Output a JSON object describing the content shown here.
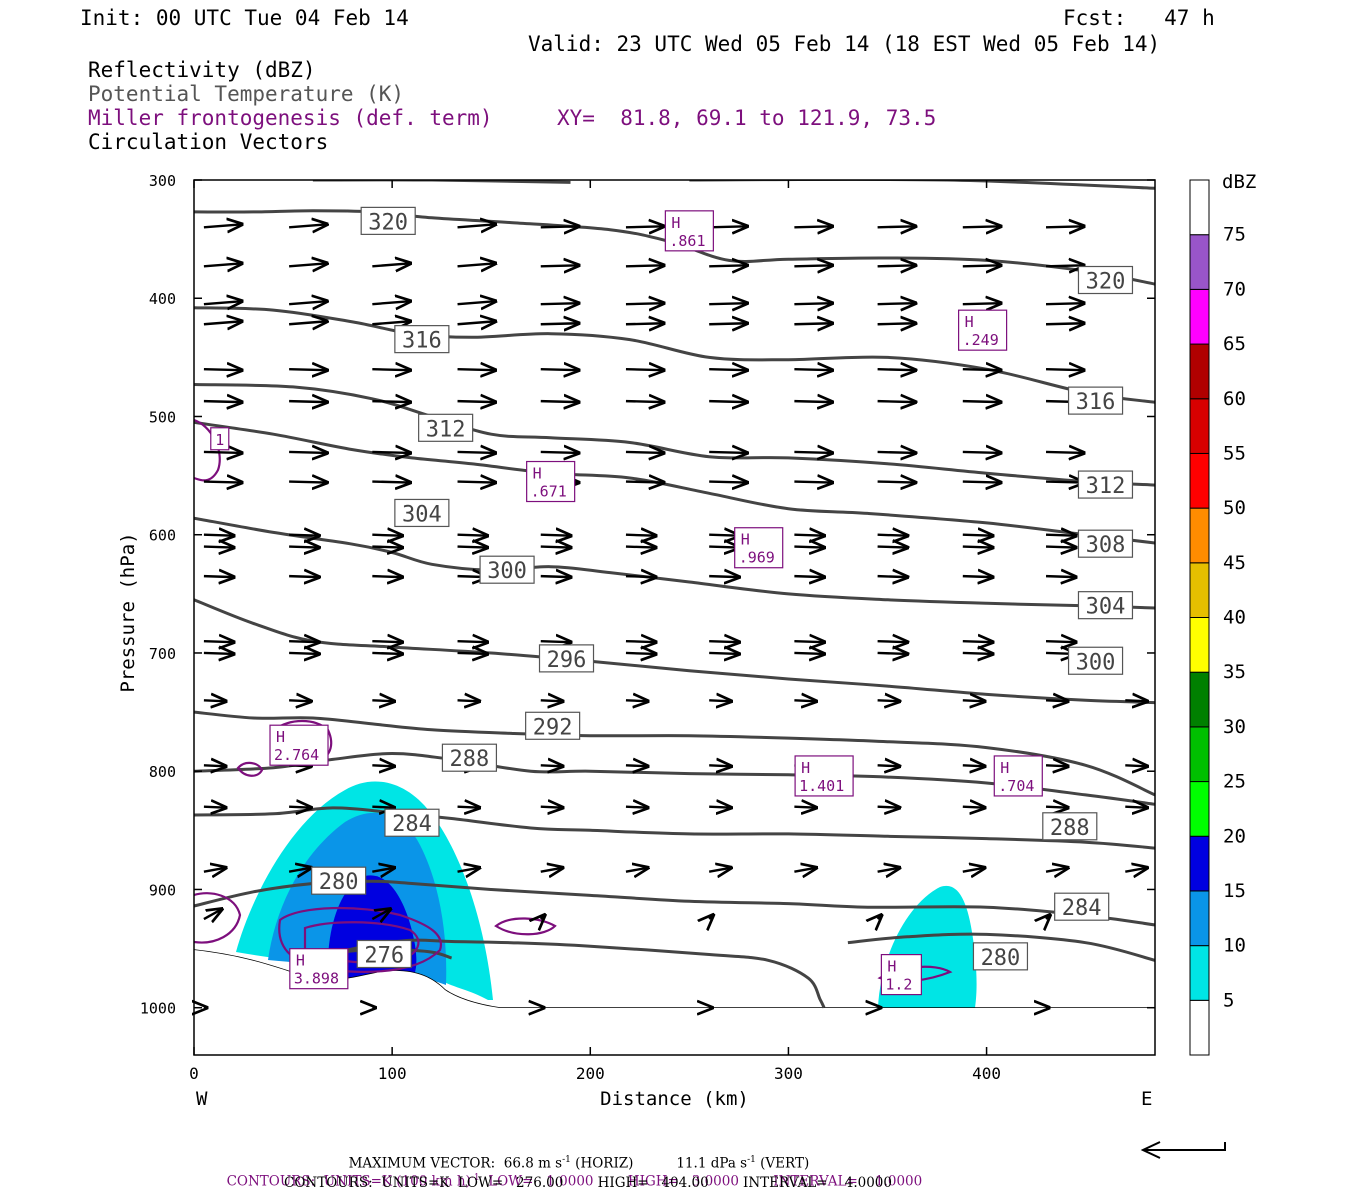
{
  "header": {
    "init": "Init: 00 UTC Tue 04 Feb 14",
    "fcst": "Fcst:   47 h",
    "valid": "Valid: 23 UTC Wed 05 Feb 14 (18 EST Wed 05 Feb 14)",
    "field1": "Reflectivity (dBZ)",
    "field2": "Potential Temperature (K)",
    "field3": "Miller frontogenesis (def. term)",
    "xy": "XY=  81.8, 69.1 to 121.9, 73.5",
    "field4": "Circulation Vectors"
  },
  "chart_data": {
    "type": "cross-section",
    "xlabel": "Distance (km)",
    "ylabel": "Pressure (hPa)",
    "xlim": [
      0,
      485
    ],
    "ylim": [
      1040,
      300
    ],
    "x_ticks": [
      0,
      100,
      200,
      300,
      400
    ],
    "y_ticks": [
      300,
      400,
      500,
      600,
      700,
      800,
      900,
      1000
    ],
    "left_label": "W",
    "right_label": "E",
    "colorbar": {
      "unit": "dBZ",
      "levels": [
        5,
        10,
        15,
        20,
        25,
        30,
        35,
        40,
        45,
        50,
        55,
        60,
        65,
        70,
        75
      ],
      "colors": [
        "#00e5e5",
        "#0a95e8",
        "#0000e0",
        "#00ff00",
        "#00c000",
        "#008000",
        "#ffff00",
        "#e5bf00",
        "#ff8c00",
        "#ff0000",
        "#d80000",
        "#b00000",
        "#ff00ff",
        "#9955c9",
        "#ffffff"
      ]
    },
    "theta_contours": [
      {
        "label": "320",
        "points": [
          [
            0,
            327
          ],
          [
            30,
            327
          ],
          [
            60,
            326
          ],
          [
            90,
            327
          ],
          [
            120,
            332
          ],
          [
            160,
            336
          ],
          [
            210,
            342
          ],
          [
            240,
            352
          ],
          [
            270,
            368
          ],
          [
            300,
            367
          ],
          [
            350,
            366
          ],
          [
            400,
            368
          ],
          [
            450,
            377
          ],
          [
            485,
            388
          ]
        ]
      },
      {
        "label": "316",
        "points": [
          [
            0,
            408
          ],
          [
            40,
            410
          ],
          [
            80,
            420
          ],
          [
            110,
            430
          ],
          [
            140,
            433
          ],
          [
            180,
            430
          ],
          [
            220,
            435
          ],
          [
            260,
            450
          ],
          [
            300,
            452
          ],
          [
            350,
            450
          ],
          [
            400,
            460
          ],
          [
            450,
            480
          ],
          [
            485,
            488
          ]
        ]
      },
      {
        "label": "312",
        "points": [
          [
            0,
            473
          ],
          [
            50,
            475
          ],
          [
            90,
            485
          ],
          [
            120,
            500
          ],
          [
            150,
            515
          ],
          [
            180,
            518
          ],
          [
            220,
            522
          ],
          [
            260,
            534
          ],
          [
            300,
            535
          ],
          [
            350,
            540
          ],
          [
            400,
            548
          ],
          [
            450,
            555
          ],
          [
            485,
            558
          ]
        ]
      },
      {
        "label": "308",
        "points": [
          [
            0,
            505
          ],
          [
            40,
            515
          ],
          [
            80,
            528
          ],
          [
            110,
            535
          ],
          [
            140,
            540
          ],
          [
            180,
            548
          ],
          [
            220,
            552
          ],
          [
            260,
            565
          ],
          [
            300,
            578
          ],
          [
            340,
            582
          ],
          [
            400,
            590
          ],
          [
            450,
            600
          ],
          [
            485,
            607
          ]
        ]
      },
      {
        "label": "304",
        "points": [
          [
            0,
            586
          ],
          [
            40,
            598
          ],
          [
            80,
            608
          ],
          [
            100,
            615
          ],
          [
            120,
            625
          ],
          [
            150,
            630
          ],
          [
            180,
            627
          ],
          [
            210,
            632
          ],
          [
            250,
            640
          ],
          [
            300,
            650
          ],
          [
            350,
            655
          ],
          [
            400,
            658
          ],
          [
            450,
            660
          ],
          [
            485,
            662
          ]
        ]
      },
      {
        "label": "300",
        "points": [
          [
            0,
            655
          ],
          [
            30,
            675
          ],
          [
            60,
            690
          ],
          [
            100,
            695
          ],
          [
            150,
            700
          ],
          [
            200,
            707
          ],
          [
            250,
            715
          ],
          [
            300,
            722
          ],
          [
            350,
            728
          ],
          [
            400,
            735
          ],
          [
            450,
            740
          ],
          [
            485,
            742
          ]
        ]
      },
      {
        "label": "296",
        "points": [
          [
            0,
            750
          ],
          [
            30,
            755
          ],
          [
            60,
            755
          ],
          [
            90,
            760
          ],
          [
            120,
            765
          ],
          [
            160,
            768
          ],
          [
            200,
            770
          ],
          [
            250,
            770
          ],
          [
            300,
            772
          ],
          [
            350,
            775
          ],
          [
            400,
            780
          ],
          [
            450,
            795
          ],
          [
            485,
            820
          ]
        ]
      },
      {
        "label": "292",
        "points": [
          [
            0,
            800
          ],
          [
            40,
            797
          ],
          [
            70,
            790
          ],
          [
            100,
            785
          ],
          [
            130,
            790
          ],
          [
            170,
            800
          ],
          [
            200,
            800
          ],
          [
            250,
            802
          ],
          [
            300,
            803
          ],
          [
            350,
            805
          ],
          [
            400,
            810
          ],
          [
            450,
            820
          ],
          [
            485,
            828
          ]
        ]
      },
      {
        "label": "288",
        "points": [
          [
            0,
            837
          ],
          [
            40,
            836
          ],
          [
            70,
            831
          ],
          [
            100,
            835
          ],
          [
            130,
            840
          ],
          [
            170,
            848
          ],
          [
            200,
            850
          ],
          [
            250,
            853
          ],
          [
            300,
            853
          ],
          [
            350,
            855
          ],
          [
            400,
            857
          ],
          [
            450,
            860
          ],
          [
            485,
            865
          ]
        ]
      },
      {
        "label": "284",
        "points": [
          [
            0,
            914
          ],
          [
            30,
            902
          ],
          [
            60,
            895
          ],
          [
            90,
            893
          ],
          [
            110,
            895
          ],
          [
            150,
            900
          ],
          [
            200,
            905
          ],
          [
            250,
            910
          ],
          [
            300,
            912
          ],
          [
            340,
            915
          ],
          [
            400,
            915
          ],
          [
            450,
            922
          ],
          [
            485,
            930
          ]
        ]
      },
      {
        "label": "280",
        "points": [
          [
            70,
            954
          ],
          [
            90,
            947
          ],
          [
            110,
            943
          ],
          [
            130,
            944
          ],
          [
            160,
            945
          ],
          [
            200,
            948
          ],
          [
            260,
            955
          ],
          [
            290,
            960
          ],
          [
            310,
            975
          ],
          [
            316,
            993
          ],
          [
            318,
            1000
          ]
        ]
      },
      {
        "label": "280b",
        "points": [
          [
            330,
            945
          ],
          [
            360,
            940
          ],
          [
            400,
            938
          ],
          [
            450,
            945
          ],
          [
            485,
            960
          ]
        ]
      },
      {
        "label": "276",
        "points": [
          [
            60,
            958
          ],
          [
            80,
            952
          ],
          [
            100,
            951
          ],
          [
            120,
            953
          ],
          [
            130,
            958
          ]
        ]
      }
    ],
    "frontogenesis_highs": [
      {
        "label": "H",
        "value": ".861"
      },
      {
        "label": "H",
        "value": ".249"
      },
      {
        "label": "H",
        "value": ".671"
      },
      {
        "label": "H",
        "value": ".969"
      },
      {
        "label": "H",
        "value": "2.764"
      },
      {
        "label": "H",
        "value": "1.401"
      },
      {
        "label": "H",
        "value": ".704"
      },
      {
        "label": "H",
        "value": "3.898"
      },
      {
        "label": "H",
        "value": "1.2"
      },
      {
        "label": "",
        "value": "1"
      }
    ]
  },
  "footer": {
    "max_vector_a": "MAXIMUM VECTOR:  66.8 m s",
    "max_vector_b": " (HORIZ)          11.1 dPa s",
    "max_vector_c": " (VERT)",
    "exp": "-1",
    "contours_purple_a": "CONTOURS:  UNITS=K (100 km h)",
    "contours_purple_b": "  LOW=   1.0000        HIGH=   3.0000        INTERVAL=    1.0000",
    "contours_black": "CONTOURS:  UNITS=K  LOW=   276.00        HIGH=   404.00        INTERVAL=    4.0000"
  }
}
